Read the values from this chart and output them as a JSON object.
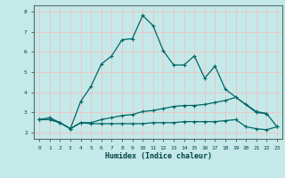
{
  "xlabel": "Humidex (Indice chaleur)",
  "background_color": "#c5e8e8",
  "grid_color": "#e8c8c8",
  "line_color": "#006666",
  "xlim": [
    -0.5,
    23.5
  ],
  "ylim": [
    1.7,
    8.3
  ],
  "yticks": [
    2,
    3,
    4,
    5,
    6,
    7,
    8
  ],
  "xticks": [
    0,
    1,
    2,
    3,
    4,
    5,
    6,
    7,
    8,
    9,
    10,
    11,
    12,
    13,
    14,
    15,
    16,
    17,
    18,
    19,
    20,
    21,
    22,
    23
  ],
  "series1_x": [
    0,
    1,
    2,
    3,
    4,
    5,
    6,
    7,
    8,
    9,
    10,
    11,
    12,
    13,
    14,
    15,
    16,
    17,
    18,
    21,
    22
  ],
  "series1_y": [
    2.65,
    2.75,
    2.5,
    2.2,
    3.55,
    4.3,
    5.4,
    5.8,
    6.6,
    6.65,
    7.8,
    7.3,
    6.05,
    5.35,
    5.35,
    5.8,
    4.7,
    5.3,
    4.15,
    3.0,
    2.95
  ],
  "series2_x": [
    0,
    1,
    2,
    3,
    4,
    5,
    6,
    7,
    8,
    9,
    10,
    11,
    12,
    13,
    14,
    15,
    16,
    17,
    18,
    19,
    20,
    21,
    22,
    23
  ],
  "series2_y": [
    2.65,
    2.65,
    2.5,
    2.2,
    2.5,
    2.5,
    2.65,
    2.75,
    2.85,
    2.9,
    3.05,
    3.1,
    3.2,
    3.3,
    3.35,
    3.35,
    3.4,
    3.5,
    3.6,
    3.75,
    3.4,
    3.05,
    2.95,
    2.3
  ],
  "series3_x": [
    0,
    1,
    2,
    3,
    4,
    5,
    6,
    7,
    8,
    9,
    10,
    11,
    12,
    13,
    14,
    15,
    16,
    17,
    18,
    19,
    20,
    21,
    22,
    23
  ],
  "series3_y": [
    2.65,
    2.65,
    2.5,
    2.2,
    2.5,
    2.45,
    2.45,
    2.45,
    2.45,
    2.45,
    2.45,
    2.5,
    2.5,
    2.5,
    2.55,
    2.55,
    2.55,
    2.55,
    2.6,
    2.65,
    2.3,
    2.2,
    2.15,
    2.3
  ]
}
